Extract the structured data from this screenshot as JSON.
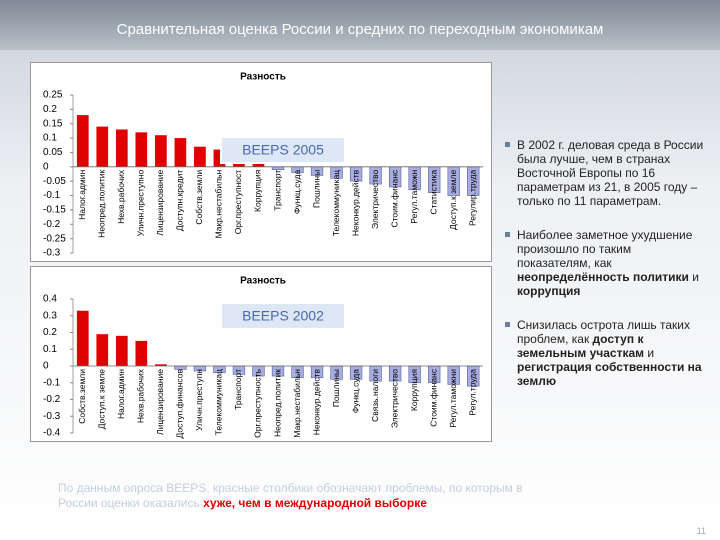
{
  "title": "Сравнительная оценка России и средних по переходным экономикам",
  "chart_data": [
    {
      "type": "bar",
      "title": "Разность",
      "annotation": "BEEPS 2005",
      "categories": [
        "Налог.админ",
        "Неопред.политик",
        "Нехв.рабочих",
        "Уличн.преступно",
        "Лицензирование",
        "Доступн.кредит",
        "Собств.земли",
        "Макр.нестабильн",
        "Орг.преступност",
        "Коррупция",
        "Транспорт",
        "Функц.суда",
        "Пошлины",
        "Телекоммуникац",
        "Неконкур.действ",
        "Электричество",
        "Стоим.финанс",
        "Регул.таможн",
        "Статистика",
        "Доступ.к земле",
        "Регулир.труда"
      ],
      "values": [
        0.18,
        0.14,
        0.13,
        0.12,
        0.11,
        0.1,
        0.07,
        0.06,
        0.05,
        0.03,
        -0.01,
        -0.02,
        -0.03,
        -0.04,
        -0.05,
        -0.06,
        -0.07,
        -0.08,
        -0.09,
        -0.1,
        -0.1
      ],
      "color": "#e00000",
      "negative_color": "#a7addf",
      "ylim": [
        -0.3,
        0.25
      ],
      "yticks": [
        0.25,
        0.2,
        0.15,
        0.1,
        0.05,
        0,
        -0.05,
        -0.1,
        -0.15,
        -0.2,
        -0.25,
        -0.3
      ]
    },
    {
      "type": "bar",
      "title": "Разность",
      "annotation": "BEEPS 2002",
      "categories": [
        "Собств.земли",
        "Доступ.к земле",
        "Налог.админ",
        "Нехв.рабочих",
        "Лицензирование",
        "Доступ.финансов",
        "Уличн.преступн",
        "Телекоммуникац",
        "Транспорт",
        "Орг.преступность",
        "Неопред.политик",
        "Макр.нестабильн",
        "Неконкур.действ",
        "Пошлины",
        "Функц.суда",
        "Связь.налоги",
        "Электричество",
        "Коррупция",
        "Стоим.финанс",
        "Регул.таможни",
        "Регул.труда"
      ],
      "values": [
        0.33,
        0.19,
        0.18,
        0.15,
        0.01,
        -0.02,
        -0.03,
        -0.04,
        -0.05,
        -0.06,
        -0.06,
        -0.07,
        -0.07,
        -0.08,
        -0.08,
        -0.09,
        -0.09,
        -0.1,
        -0.1,
        -0.11,
        -0.12
      ],
      "color": "#e00000",
      "negative_color": "#a7addf",
      "ylim": [
        -0.4,
        0.4
      ],
      "yticks": [
        0.4,
        0.3,
        0.2,
        0.1,
        0,
        -0.1,
        -0.2,
        -0.3,
        -0.4
      ]
    }
  ],
  "bullets": [
    [
      {
        "text": "В 2002 г. деловая среда в России была лучше, чем в странах Восточной Европы по 16 параметрам из 21, в 2005 году – только по 11 параметрам.",
        "bold": false
      }
    ],
    [
      {
        "text": "Наиболее заметное ухудшение произошло по таким показателям, как ",
        "bold": false
      },
      {
        "text": "неопределённость политики",
        "bold": true
      },
      {
        "text": " и ",
        "bold": false
      },
      {
        "text": "коррупция",
        "bold": true
      }
    ],
    [
      {
        "text": "Снизилась острота лишь таких проблем, как ",
        "bold": false
      },
      {
        "text": "доступ к земельным участкам",
        "bold": true
      },
      {
        "text": " и ",
        "bold": false
      },
      {
        "text": "регистрация собственности на землю",
        "bold": true
      }
    ]
  ],
  "footnote": [
    {
      "text": "По данным опроса BEEPS, красные столбики обозначают проблемы, по которым в России оценки оказались ",
      "bold": false
    },
    {
      "text": "хуже, чем в международной выборке",
      "bold": true
    }
  ],
  "page_number": "11"
}
